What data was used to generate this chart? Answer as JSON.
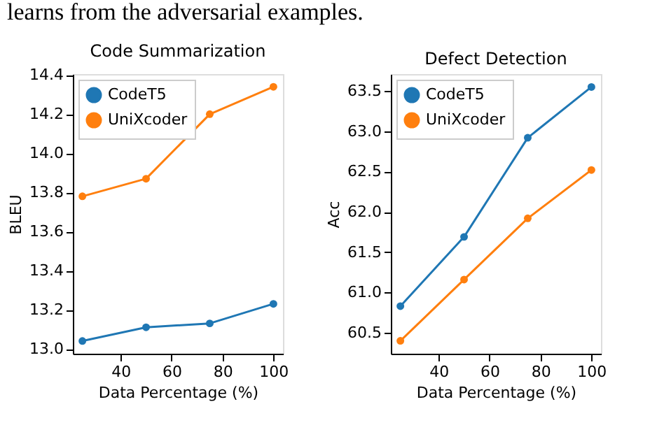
{
  "chart_data": [
    {
      "type": "line",
      "title": "Code Summarization",
      "xlabel": "Data Percentage (%)",
      "ylabel": "BLEU",
      "annotations": [
        "learns from the adversarial examples."
      ],
      "x": [
        25,
        50,
        75,
        100
      ],
      "series": [
        {
          "name": "CodeT5",
          "color": "#1f77b4",
          "values": [
            13.04,
            13.11,
            13.13,
            13.23
          ]
        },
        {
          "name": "UniXcoder",
          "color": "#ff7f0e",
          "values": [
            13.78,
            13.87,
            14.2,
            14.34
          ]
        }
      ],
      "xlim": [
        21.25,
        103.75
      ],
      "xticks": [
        40,
        60,
        80,
        100
      ],
      "ylim": [
        12.975,
        14.405
      ],
      "yticks": [
        {
          "value": 13,
          "label": "13.0"
        },
        13.2,
        13.4,
        13.6,
        13.8,
        {
          "value": 14,
          "label": "14.0"
        },
        14.2,
        14.4
      ],
      "legend": "top left",
      "marker": "circle",
      "grid": false
    },
    {
      "type": "line",
      "title": "Defect Detection",
      "xlabel": "Data Percentage (%)",
      "ylabel": "Acc",
      "x": [
        25,
        50,
        75,
        100
      ],
      "series": [
        {
          "name": "CodeT5",
          "color": "#1f77b4",
          "values": [
            60.83,
            61.69,
            62.92,
            63.55
          ]
        },
        {
          "name": "UniXcoder",
          "color": "#ff7f0e",
          "values": [
            60.4,
            61.16,
            61.92,
            62.52
          ]
        }
      ],
      "xlim": [
        21.25,
        103.75
      ],
      "xticks": [
        40,
        60,
        80,
        100
      ],
      "ylim": [
        60.24,
        63.71
      ],
      "yticks": [
        60.5,
        {
          "value": 61,
          "label": "61.0"
        },
        61.5,
        {
          "value": 62,
          "label": "62.0"
        },
        62.5,
        {
          "value": 63,
          "label": "63.0"
        },
        63.5
      ],
      "legend": "top left",
      "marker": "circle",
      "grid": false
    }
  ]
}
